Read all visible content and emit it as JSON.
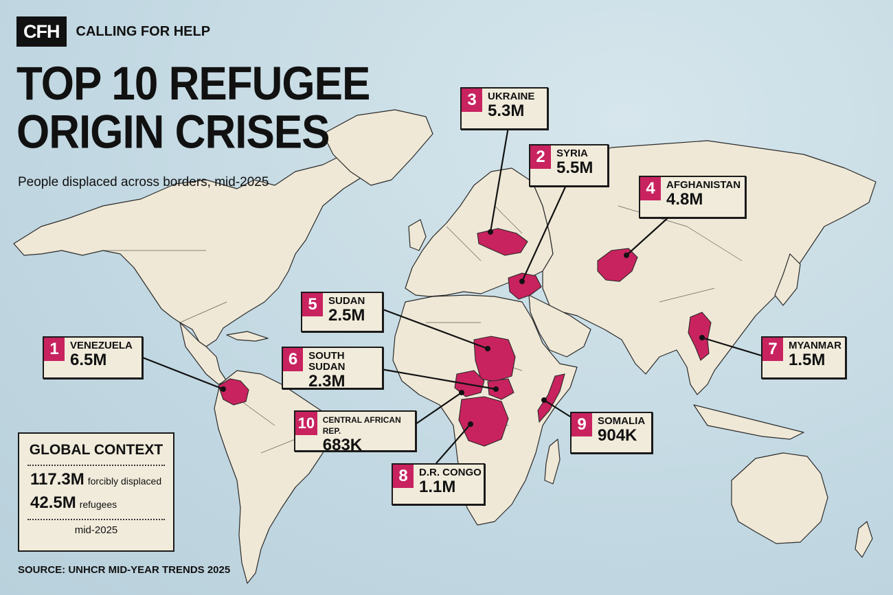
{
  "brand": {
    "logo": "CFH",
    "name": "CALLING FOR HELP"
  },
  "title_line1": "TOP 10 REFUGEE",
  "title_line2": "ORIGIN CRISES",
  "subtitle": "People displaced across borders, mid-2025",
  "crises": [
    {
      "rank": "1",
      "country": "VENEZUELA",
      "value": "6.5M"
    },
    {
      "rank": "2",
      "country": "SYRIA",
      "value": "5.5M"
    },
    {
      "rank": "3",
      "country": "UKRAINE",
      "value": "5.3M"
    },
    {
      "rank": "4",
      "country": "AFGHANISTAN",
      "value": "4.8M"
    },
    {
      "rank": "5",
      "country": "SUDAN",
      "value": "2.5M"
    },
    {
      "rank": "6",
      "country": "SOUTH SUDAN",
      "value": "2.3M"
    },
    {
      "rank": "7",
      "country": "MYANMAR",
      "value": "1.5M"
    },
    {
      "rank": "8",
      "country": "D.R. CONGO",
      "value": "1.1M"
    },
    {
      "rank": "9",
      "country": "SOMALIA",
      "value": "904K"
    },
    {
      "rank": "10",
      "country": "CENTRAL AFRICAN REP.",
      "value": "683K"
    }
  ],
  "context": {
    "title": "GLOBAL CONTEXT",
    "displaced_value": "117.3M",
    "displaced_label": "forcibly displaced",
    "refugees_value": "42.5M",
    "refugees_label": "refugees",
    "date": "mid-2025"
  },
  "source": "SOURCE: UNHCR MID-YEAR TRENDS 2025",
  "colors": {
    "highlight": "#c8235f",
    "land": "#efe8d6",
    "ocean": "#c2d8e2",
    "ink": "#111111"
  }
}
